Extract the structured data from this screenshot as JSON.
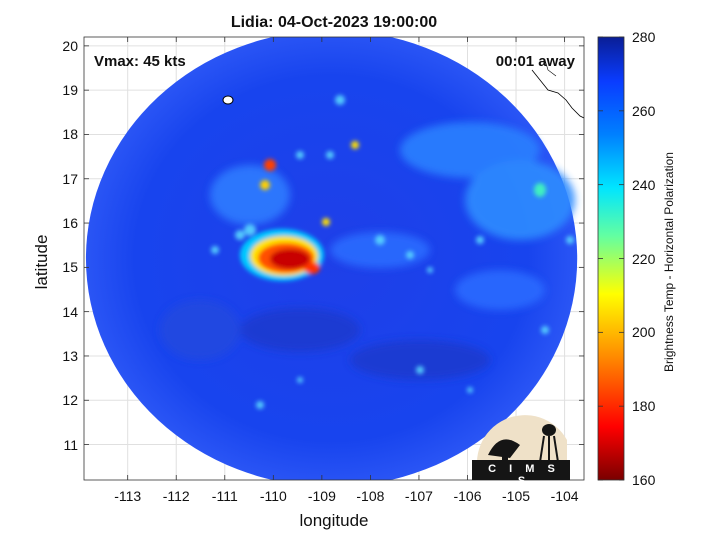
{
  "title": "Lidia: 04-Oct-2023 19:00:00",
  "annotations": {
    "vmax": "Vmax: 45 kts",
    "time_away": "00:01 away"
  },
  "axes": {
    "xlabel": "longitude",
    "ylabel": "latitude",
    "xlim": [
      -113.9,
      -103.6
    ],
    "ylim": [
      10.2,
      20.2
    ],
    "xticks": [
      -113,
      -112,
      -111,
      -110,
      -109,
      -108,
      -107,
      -106,
      -105,
      -104
    ],
    "xtick_labels": [
      "-113",
      "-112",
      "-111",
      "-110",
      "-109",
      "-108",
      "-107",
      "-106",
      "-105",
      "-104"
    ],
    "yticks": [
      11,
      12,
      13,
      14,
      15,
      16,
      17,
      18,
      19,
      20
    ],
    "ytick_labels": [
      "11",
      "12",
      "13",
      "14",
      "15",
      "16",
      "17",
      "18",
      "19",
      "20"
    ]
  },
  "colorbar": {
    "label": "Brightness Temp - Horizontal Polarization",
    "range": [
      160,
      280
    ],
    "ticks": [
      160,
      180,
      200,
      220,
      240,
      260,
      280
    ],
    "tick_labels": [
      "160",
      "180",
      "200",
      "220",
      "240",
      "260",
      "280"
    ],
    "colors": [
      "#7a0000",
      "#ff0000",
      "#ff8c00",
      "#ffff00",
      "#64ffa0",
      "#00e5ff",
      "#0080ff",
      "#0a3cff",
      "#0a1e96"
    ]
  },
  "storm": {
    "name": "Lidia",
    "center_lon": -109.8,
    "center_lat": 15.1
  },
  "swath": {
    "center_lon": -108.8,
    "center_lat": 15.2,
    "radius_lon": 5.06,
    "radius_lat": 5.15
  },
  "logo": {
    "text": "C I M S S"
  }
}
